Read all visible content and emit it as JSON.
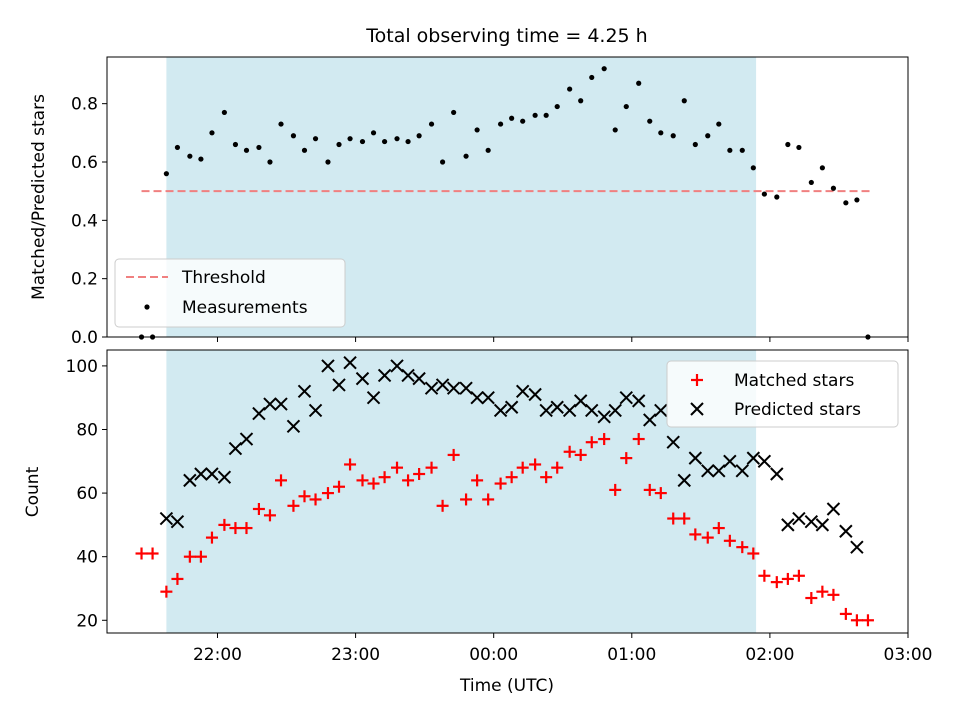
{
  "title": "Total observing time = 4.25 h",
  "colors": {
    "shade": "#add8e6",
    "threshold": "#f08080",
    "measurements": "#000000",
    "matched": "#ff0000",
    "predicted": "#000000"
  },
  "chart_data": [
    {
      "type": "scatter",
      "name": "top-panel",
      "ylabel": "Matched/Predicted stars",
      "xlabel": "",
      "ylim": [
        0,
        0.96
      ],
      "yticks": [
        0.0,
        0.2,
        0.4,
        0.6,
        0.8
      ],
      "ytick_labels": [
        "0.0",
        "0.2",
        "0.4",
        "0.6",
        "0.8"
      ],
      "xlim_hours": [
        21.2,
        27.0
      ],
      "shade_range_hours": [
        21.63,
        25.9
      ],
      "legend": {
        "placement": "lower-left",
        "entries": [
          "Threshold",
          "Measurements"
        ]
      },
      "threshold": {
        "name": "Threshold",
        "value": 0.5,
        "x_range_hours": [
          21.45,
          26.75
        ]
      },
      "series": [
        {
          "name": "Measurements",
          "marker": "dot",
          "x": [
            21.45,
            21.53,
            21.63,
            21.71,
            21.8,
            21.88,
            21.96,
            22.05,
            22.13,
            22.21,
            22.3,
            22.38,
            22.46,
            22.55,
            22.63,
            22.71,
            22.8,
            22.88,
            22.96,
            23.05,
            23.13,
            23.21,
            23.3,
            23.38,
            23.46,
            23.55,
            23.63,
            23.71,
            23.8,
            23.88,
            23.96,
            24.05,
            24.13,
            24.21,
            24.3,
            24.38,
            24.46,
            24.55,
            24.63,
            24.71,
            24.8,
            24.88,
            24.96,
            25.05,
            25.13,
            25.21,
            25.3,
            25.38,
            25.46,
            25.55,
            25.63,
            25.71,
            25.8,
            25.88,
            25.96,
            26.05,
            26.13,
            26.21,
            26.3,
            26.38,
            26.46,
            26.55,
            26.63,
            26.71
          ],
          "y": [
            0.0,
            0.0,
            0.56,
            0.65,
            0.62,
            0.61,
            0.7,
            0.77,
            0.66,
            0.64,
            0.65,
            0.6,
            0.73,
            0.69,
            0.64,
            0.68,
            0.6,
            0.66,
            0.68,
            0.67,
            0.7,
            0.67,
            0.68,
            0.67,
            0.69,
            0.73,
            0.6,
            0.77,
            0.62,
            0.71,
            0.64,
            0.73,
            0.75,
            0.74,
            0.76,
            0.76,
            0.79,
            0.85,
            0.81,
            0.89,
            0.92,
            0.71,
            0.79,
            0.87,
            0.74,
            0.7,
            0.69,
            0.81,
            0.66,
            0.69,
            0.73,
            0.64,
            0.64,
            0.58,
            0.49,
            0.48,
            0.66,
            0.65,
            0.53,
            0.58,
            0.51,
            0.46,
            0.47,
            0.0
          ]
        }
      ]
    },
    {
      "type": "scatter",
      "name": "bottom-panel",
      "ylabel": "Count",
      "xlabel": "Time (UTC)",
      "ylim": [
        16,
        105
      ],
      "yticks": [
        20,
        40,
        60,
        80,
        100
      ],
      "ytick_labels": [
        "20",
        "40",
        "60",
        "80",
        "100"
      ],
      "xlim_hours": [
        21.2,
        27.0
      ],
      "xticks_hours": [
        22,
        23,
        24,
        25,
        26,
        27
      ],
      "xtick_labels": [
        "22:00",
        "23:00",
        "00:00",
        "01:00",
        "02:00",
        "03:00"
      ],
      "shade_range_hours": [
        21.63,
        25.9
      ],
      "legend": {
        "placement": "top-right",
        "entries": [
          "Matched stars",
          "Predicted stars"
        ]
      },
      "series": [
        {
          "name": "Matched stars",
          "marker": "plus",
          "x": [
            21.45,
            21.53,
            21.63,
            21.71,
            21.8,
            21.88,
            21.96,
            22.05,
            22.13,
            22.21,
            22.3,
            22.38,
            22.46,
            22.55,
            22.63,
            22.71,
            22.8,
            22.88,
            22.96,
            23.05,
            23.13,
            23.21,
            23.3,
            23.38,
            23.46,
            23.55,
            23.63,
            23.71,
            23.8,
            23.88,
            23.96,
            24.05,
            24.13,
            24.21,
            24.3,
            24.38,
            24.46,
            24.55,
            24.63,
            24.71,
            24.8,
            24.88,
            24.96,
            25.05,
            25.13,
            25.21,
            25.3,
            25.38,
            25.46,
            25.55,
            25.63,
            25.71,
            25.8,
            25.88,
            25.96,
            26.05,
            26.13,
            26.21,
            26.3,
            26.38,
            26.46,
            26.55,
            26.63,
            26.71
          ],
          "y": [
            41,
            41,
            29,
            33,
            40,
            40,
            46,
            50,
            49,
            49,
            55,
            53,
            64,
            56,
            59,
            58,
            60,
            62,
            69,
            64,
            63,
            65,
            68,
            64,
            66,
            68,
            56,
            72,
            58,
            64,
            58,
            63,
            65,
            68,
            69,
            65,
            68,
            73,
            72,
            76,
            77,
            61,
            71,
            77,
            61,
            60,
            52,
            52,
            47,
            46,
            49,
            45,
            43,
            41,
            34,
            32,
            33,
            34,
            27,
            29,
            28,
            22,
            20,
            20
          ]
        },
        {
          "name": "Predicted stars",
          "marker": "x",
          "x": [
            21.63,
            21.71,
            21.8,
            21.88,
            21.96,
            22.05,
            22.13,
            22.21,
            22.3,
            22.38,
            22.46,
            22.55,
            22.63,
            22.71,
            22.8,
            22.88,
            22.96,
            23.05,
            23.13,
            23.21,
            23.3,
            23.38,
            23.46,
            23.55,
            23.63,
            23.71,
            23.8,
            23.88,
            23.96,
            24.05,
            24.13,
            24.21,
            24.3,
            24.38,
            24.46,
            24.55,
            24.63,
            24.71,
            24.8,
            24.88,
            24.96,
            25.05,
            25.13,
            25.21,
            25.3,
            25.38,
            25.46,
            25.55,
            25.63,
            25.71,
            25.8,
            25.88,
            25.96,
            26.05,
            26.13,
            26.21,
            26.3,
            26.38,
            26.46,
            26.55,
            26.63
          ],
          "y": [
            52,
            51,
            64,
            66,
            66,
            65,
            74,
            77,
            85,
            88,
            88,
            81,
            92,
            86,
            100,
            94,
            101,
            96,
            90,
            97,
            100,
            97,
            96,
            93,
            94,
            93,
            93,
            90,
            90,
            86,
            87,
            92,
            91,
            86,
            87,
            86,
            89,
            86,
            84,
            86,
            90,
            89,
            83,
            86,
            76,
            64,
            71,
            67,
            67,
            70,
            67,
            71,
            70,
            66,
            50,
            52,
            51,
            50,
            55,
            48,
            43
          ]
        }
      ]
    }
  ]
}
